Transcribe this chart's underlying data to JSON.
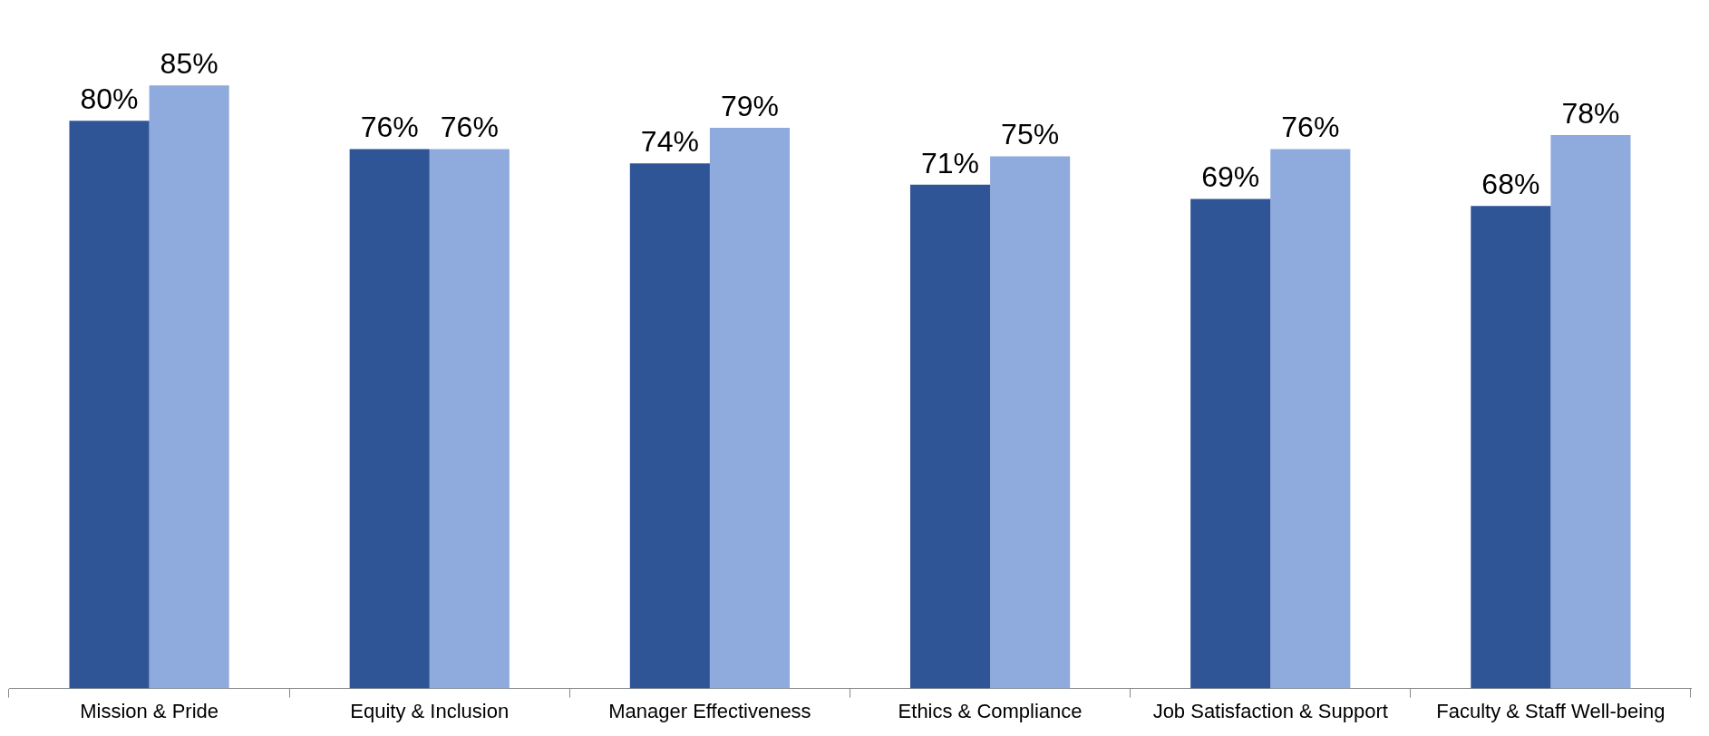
{
  "chart_data": {
    "type": "bar",
    "categories": [
      "Mission & Pride",
      "Equity & Inclusion",
      "Manager Effectiveness",
      "Ethics & Compliance",
      "Job Satisfaction & Support",
      "Faculty & Staff Well-being"
    ],
    "series": [
      {
        "color": "#2f5597",
        "values": [
          80,
          76,
          74,
          71,
          69,
          68
        ],
        "value_labels": [
          "80%",
          "76%",
          "74%",
          "71%",
          "69%",
          "68%"
        ]
      },
      {
        "color": "#8faadc",
        "values": [
          85,
          76,
          79,
          75,
          76,
          78
        ],
        "value_labels": [
          "85%",
          "76%",
          "79%",
          "75%",
          "76%",
          "78%"
        ]
      }
    ]
  }
}
